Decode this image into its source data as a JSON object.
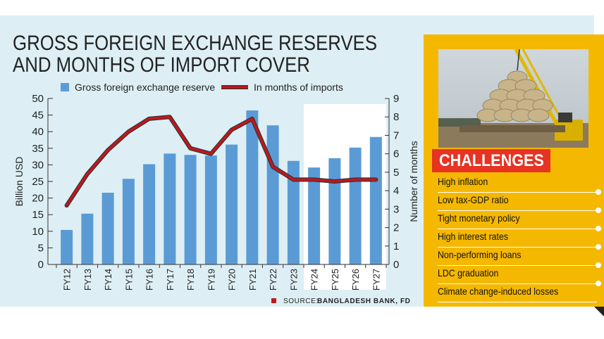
{
  "title": {
    "line1": "GROSS FOREIGN EXCHANGE RESERVES",
    "line2": "AND MONTHS OF IMPORT COVER"
  },
  "source": {
    "label": "SOURCE:",
    "value": "BANGLADESH BANK, FD"
  },
  "colors": {
    "bar": "#5b9bd5",
    "line": "#c4161c",
    "line_shadow": "#333333",
    "panel": "#ddeff5",
    "projection_bg": "#ffffff",
    "side": "#f5b800",
    "tag": "#e63322"
  },
  "chart_data": {
    "type": "bar+line",
    "categories": [
      "FY12",
      "FY13",
      "FY14",
      "FY15",
      "FY16",
      "FY17",
      "FY18",
      "FY19",
      "FY20",
      "FY21",
      "FY22",
      "FY23",
      "FY24",
      "FY25",
      "FY26",
      "FY27"
    ],
    "series": [
      {
        "name": "Gross foreign exchange reserve",
        "type": "bar",
        "axis": "left",
        "values": [
          10.4,
          15.3,
          21.6,
          25.8,
          30.2,
          33.4,
          33.0,
          32.8,
          36.1,
          46.4,
          41.9,
          31.2,
          29.2,
          32.0,
          35.2,
          38.4
        ]
      },
      {
        "name": "In months of imports",
        "type": "line",
        "axis": "right",
        "values": [
          3.2,
          4.9,
          6.2,
          7.2,
          7.9,
          8.0,
          6.3,
          6.0,
          7.3,
          7.9,
          5.3,
          4.6,
          4.6,
          4.5,
          4.6,
          4.6
        ]
      }
    ],
    "y_left": {
      "label": "Billion USD",
      "min": 0,
      "max": 50,
      "ticks": [
        "0",
        "5",
        "10",
        "15",
        "20",
        "25",
        "30",
        "35",
        "40",
        "45",
        "50"
      ]
    },
    "y_right": {
      "label": "Number of months",
      "min": 0,
      "max": 9,
      "ticks": [
        "0",
        "1",
        "2",
        "3",
        "4",
        "5",
        "6",
        "7",
        "8",
        "9"
      ]
    },
    "projection_start": "FY24",
    "legend_position": "top"
  },
  "challenges": {
    "heading": "CHALLENGES",
    "photo_alt": "crane-lifting-sacks-photo",
    "items": [
      "High inflation",
      "Low tax-GDP ratio",
      "Tight monetary policy",
      "High interest rates",
      "Non-performing loans",
      "LDC graduation",
      "Climate change-induced losses"
    ]
  }
}
